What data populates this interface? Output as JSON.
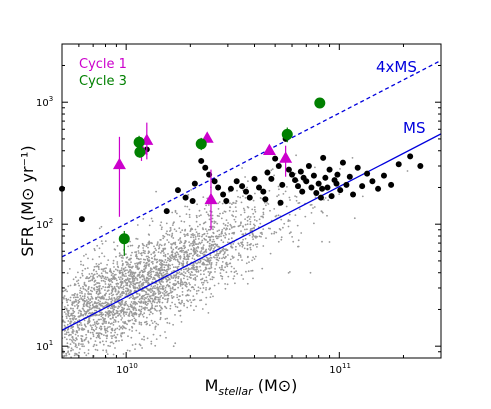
{
  "chart_data": {
    "type": "scatter",
    "xscale": "log",
    "yscale": "log",
    "xlim": [
      5000000000,
      300000000000
    ],
    "ylim": [
      8,
      3000
    ],
    "xlabel": "M_stellar (M⊙)",
    "ylabel": "SFR (M⊙ yr⁻¹)",
    "x_ticks": [
      {
        "value": 10000000000,
        "label": "10^10"
      },
      {
        "value": 100000000000,
        "label": "10^11"
      }
    ],
    "y_ticks": [
      {
        "value": 10,
        "label": "10^1"
      },
      {
        "value": 100,
        "label": "10^2"
      },
      {
        "value": 1000,
        "label": "10^3"
      }
    ],
    "legend": {
      "position": "top-left",
      "entries": [
        {
          "name": "Cycle 1",
          "color": "#cc00cc",
          "marker": "triangle"
        },
        {
          "name": "Cycle 3",
          "color": "#008000",
          "marker": "circle"
        }
      ]
    },
    "lines": [
      {
        "name": "MS",
        "color": "#0000dd",
        "style": "solid",
        "x": [
          5000000000,
          300000000000
        ],
        "y": [
          13.5,
          550
        ]
      },
      {
        "name": "4xMS",
        "color": "#0000dd",
        "style": "dashed",
        "x": [
          5000000000,
          300000000000
        ],
        "y": [
          54,
          2200
        ]
      }
    ],
    "background_cloud": {
      "color": "#999999",
      "n_points": 3500,
      "note": "grey field galaxy population scattered around the MS line"
    },
    "series": [
      {
        "name": "black",
        "color": "#000000",
        "marker": "circle",
        "points": [
          {
            "x": 5000000000,
            "y": 195
          },
          {
            "x": 6200000000,
            "y": 110
          },
          {
            "x": 12500000000,
            "y": 410
          },
          {
            "x": 15500000000,
            "y": 128
          },
          {
            "x": 17500000000,
            "y": 190
          },
          {
            "x": 19000000000,
            "y": 165
          },
          {
            "x": 20500000000,
            "y": 155
          },
          {
            "x": 21000000000,
            "y": 215
          },
          {
            "x": 22500000000,
            "y": 330
          },
          {
            "x": 23500000000,
            "y": 290
          },
          {
            "x": 24500000000,
            "y": 255
          },
          {
            "x": 26000000000,
            "y": 225
          },
          {
            "x": 27000000000,
            "y": 200
          },
          {
            "x": 28500000000,
            "y": 175
          },
          {
            "x": 29500000000,
            "y": 155
          },
          {
            "x": 31000000000,
            "y": 195
          },
          {
            "x": 33000000000,
            "y": 225
          },
          {
            "x": 35000000000,
            "y": 205
          },
          {
            "x": 36500000000,
            "y": 185
          },
          {
            "x": 38000000000,
            "y": 165
          },
          {
            "x": 40000000000,
            "y": 235
          },
          {
            "x": 42000000000,
            "y": 200
          },
          {
            "x": 44000000000,
            "y": 185
          },
          {
            "x": 46000000000,
            "y": 265
          },
          {
            "x": 48000000000,
            "y": 235
          },
          {
            "x": 50000000000,
            "y": 345
          },
          {
            "x": 52000000000,
            "y": 300
          },
          {
            "x": 54000000000,
            "y": 210
          },
          {
            "x": 56000000000,
            "y": 500
          },
          {
            "x": 58000000000,
            "y": 280
          },
          {
            "x": 60000000000,
            "y": 255
          },
          {
            "x": 62000000000,
            "y": 230
          },
          {
            "x": 64000000000,
            "y": 205
          },
          {
            "x": 66000000000,
            "y": 270
          },
          {
            "x": 68000000000,
            "y": 240
          },
          {
            "x": 70000000000,
            "y": 225
          },
          {
            "x": 72000000000,
            "y": 300
          },
          {
            "x": 74000000000,
            "y": 200
          },
          {
            "x": 76000000000,
            "y": 250
          },
          {
            "x": 78000000000,
            "y": 180
          },
          {
            "x": 80000000000,
            "y": 215
          },
          {
            "x": 82000000000,
            "y": 165
          },
          {
            "x": 84000000000,
            "y": 350
          },
          {
            "x": 86000000000,
            "y": 240
          },
          {
            "x": 88000000000,
            "y": 200
          },
          {
            "x": 90000000000,
            "y": 280
          },
          {
            "x": 92000000000,
            "y": 170
          },
          {
            "x": 95000000000,
            "y": 230
          },
          {
            "x": 98000000000,
            "y": 255
          },
          {
            "x": 101000000000,
            "y": 190
          },
          {
            "x": 104000000000,
            "y": 320
          },
          {
            "x": 108000000000,
            "y": 210
          },
          {
            "x": 112000000000,
            "y": 245
          },
          {
            "x": 116000000000,
            "y": 175
          },
          {
            "x": 122000000000,
            "y": 290
          },
          {
            "x": 128000000000,
            "y": 205
          },
          {
            "x": 135000000000,
            "y": 260
          },
          {
            "x": 143000000000,
            "y": 225
          },
          {
            "x": 152000000000,
            "y": 195
          },
          {
            "x": 162000000000,
            "y": 250
          },
          {
            "x": 175000000000,
            "y": 210
          },
          {
            "x": 190000000000,
            "y": 310
          },
          {
            "x": 215000000000,
            "y": 360
          },
          {
            "x": 240000000000,
            "y": 300
          },
          {
            "x": 45000000000,
            "y": 160
          },
          {
            "x": 53000000000,
            "y": 150
          },
          {
            "x": 67000000000,
            "y": 185
          },
          {
            "x": 83000000000,
            "y": 195
          },
          {
            "x": 97000000000,
            "y": 215
          }
        ]
      },
      {
        "name": "Cycle 1",
        "color": "#cc00cc",
        "marker": "triangle",
        "points": [
          {
            "x": 9300000000,
            "y": 310,
            "ylo": 115,
            "yhi": 520
          },
          {
            "x": 11800000000,
            "y": 410,
            "ylo": 330,
            "yhi": 490
          },
          {
            "x": 12500000000,
            "y": 490,
            "ylo": 340,
            "yhi": 680
          },
          {
            "x": 24000000000,
            "y": 510,
            "ylo": 470,
            "yhi": 560
          },
          {
            "x": 25000000000,
            "y": 160,
            "ylo": 90,
            "yhi": 280
          },
          {
            "x": 47000000000,
            "y": 405,
            "ylo": 375,
            "yhi": 440
          },
          {
            "x": 56000000000,
            "y": 350,
            "ylo": 245,
            "yhi": 440
          }
        ]
      },
      {
        "name": "Cycle 3",
        "color": "#008000",
        "marker": "circle",
        "points": [
          {
            "x": 9800000000,
            "y": 76,
            "ylo": 55,
            "yhi": 88
          },
          {
            "x": 11500000000,
            "y": 470,
            "ylo": 420,
            "yhi": 530
          },
          {
            "x": 11600000000,
            "y": 390,
            "ylo": 350,
            "yhi": 430
          },
          {
            "x": 22500000000,
            "y": 455,
            "ylo": 405,
            "yhi": 510
          },
          {
            "x": 57000000000,
            "y": 545,
            "ylo": 470,
            "yhi": 620
          },
          {
            "x": 81000000000,
            "y": 985,
            "ylo": 950,
            "yhi": 1050
          }
        ]
      }
    ]
  }
}
